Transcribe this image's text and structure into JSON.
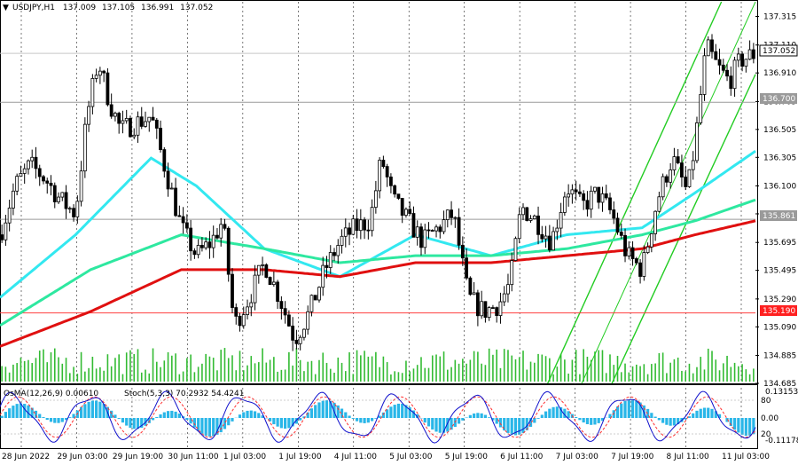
{
  "header": {
    "symbol": "USDJPY,H1",
    "open": "137.009",
    "high": "137.105",
    "low": "136.991",
    "close": "137.052"
  },
  "price_axis": {
    "ticks": [
      "137.315",
      "137.110",
      "136.910",
      "136.705",
      "136.505",
      "136.305",
      "136.100",
      "135.900",
      "135.695",
      "135.495",
      "135.290",
      "135.090",
      "134.885",
      "134.685"
    ]
  },
  "time_axis": {
    "labels": [
      "28 Jun 2022",
      "29 Jun 03:00",
      "29 Jun 19:00",
      "30 Jun 11:00",
      "1 Jul 03:00",
      "1 Jul 19:00",
      "4 Jul 11:00",
      "5 Jul 03:00",
      "5 Jul 19:00",
      "6 Jul 11:00",
      "7 Jul 03:00",
      "7 Jul 19:00",
      "8 Jul 11:00",
      "11 Jul 03:00"
    ]
  },
  "markers": {
    "current_price": "137.052",
    "level_upper": "136.700",
    "level_mid": "135.861",
    "level_lower": "135.190"
  },
  "indicator": {
    "osma_label": "OsMA(12,26,9) 0.00610",
    "stoch_label": "Stoch(5,3,3) 70.2932 54.4241",
    "axis_ticks": [
      "0.13153",
      "80",
      "0.00",
      "20",
      "-0.11178"
    ]
  },
  "colors": {
    "candle": "#000000",
    "ema_fast": "#33e8f0",
    "ema_mid": "#2ee8a0",
    "ema_slow": "#e01010",
    "channel": "#22cc22",
    "level_line": "#ff4040",
    "gray_level": "#9a9a9a",
    "volume": "#33bb33",
    "osma": "#29b6e8",
    "stoch_main": "#1010cc",
    "stoch_signal": "#ff3030"
  },
  "chart_data": {
    "type": "candlestick",
    "symbol": "USDJPY",
    "timeframe": "H1",
    "ylim": [
      134.685,
      137.42
    ],
    "horizontal_levels": [
      136.7,
      135.861,
      135.19
    ],
    "price_anchors": [
      {
        "x": 0,
        "y": 135.75
      },
      {
        "x": 0.02,
        "y": 136.1
      },
      {
        "x": 0.04,
        "y": 136.25
      },
      {
        "x": 0.06,
        "y": 136.15
      },
      {
        "x": 0.08,
        "y": 136.0
      },
      {
        "x": 0.1,
        "y": 135.9
      },
      {
        "x": 0.115,
        "y": 136.6
      },
      {
        "x": 0.13,
        "y": 137.0
      },
      {
        "x": 0.145,
        "y": 136.7
      },
      {
        "x": 0.16,
        "y": 136.5
      },
      {
        "x": 0.18,
        "y": 136.55
      },
      {
        "x": 0.2,
        "y": 136.6
      },
      {
        "x": 0.22,
        "y": 136.2
      },
      {
        "x": 0.24,
        "y": 135.8
      },
      {
        "x": 0.26,
        "y": 135.6
      },
      {
        "x": 0.28,
        "y": 135.7
      },
      {
        "x": 0.295,
        "y": 135.85
      },
      {
        "x": 0.31,
        "y": 135.1
      },
      {
        "x": 0.33,
        "y": 135.3
      },
      {
        "x": 0.35,
        "y": 135.55
      },
      {
        "x": 0.37,
        "y": 135.3
      },
      {
        "x": 0.39,
        "y": 135.0
      },
      {
        "x": 0.41,
        "y": 135.2
      },
      {
        "x": 0.43,
        "y": 135.5
      },
      {
        "x": 0.45,
        "y": 135.7
      },
      {
        "x": 0.47,
        "y": 135.8
      },
      {
        "x": 0.49,
        "y": 135.85
      },
      {
        "x": 0.505,
        "y": 136.3
      },
      {
        "x": 0.52,
        "y": 136.0
      },
      {
        "x": 0.54,
        "y": 135.85
      },
      {
        "x": 0.56,
        "y": 135.7
      },
      {
        "x": 0.58,
        "y": 135.8
      },
      {
        "x": 0.6,
        "y": 135.9
      },
      {
        "x": 0.62,
        "y": 135.3
      },
      {
        "x": 0.64,
        "y": 135.2
      },
      {
        "x": 0.66,
        "y": 135.25
      },
      {
        "x": 0.675,
        "y": 135.4
      },
      {
        "x": 0.69,
        "y": 135.95
      },
      {
        "x": 0.71,
        "y": 135.85
      },
      {
        "x": 0.73,
        "y": 135.7
      },
      {
        "x": 0.75,
        "y": 136.1
      },
      {
        "x": 0.77,
        "y": 135.95
      },
      {
        "x": 0.79,
        "y": 136.05
      },
      {
        "x": 0.81,
        "y": 135.9
      },
      {
        "x": 0.83,
        "y": 135.6
      },
      {
        "x": 0.85,
        "y": 135.5
      },
      {
        "x": 0.87,
        "y": 136.0
      },
      {
        "x": 0.89,
        "y": 136.3
      },
      {
        "x": 0.91,
        "y": 136.05
      },
      {
        "x": 0.92,
        "y": 136.4
      },
      {
        "x": 0.935,
        "y": 137.1
      },
      {
        "x": 0.95,
        "y": 136.95
      },
      {
        "x": 0.965,
        "y": 136.85
      },
      {
        "x": 0.98,
        "y": 137.0
      },
      {
        "x": 1,
        "y": 137.05
      }
    ],
    "ema_fast": [
      {
        "x": 0,
        "y": 135.3
      },
      {
        "x": 0.1,
        "y": 135.75
      },
      {
        "x": 0.2,
        "y": 136.3
      },
      {
        "x": 0.26,
        "y": 136.1
      },
      {
        "x": 0.35,
        "y": 135.65
      },
      {
        "x": 0.45,
        "y": 135.45
      },
      {
        "x": 0.55,
        "y": 135.75
      },
      {
        "x": 0.65,
        "y": 135.6
      },
      {
        "x": 0.75,
        "y": 135.75
      },
      {
        "x": 0.85,
        "y": 135.8
      },
      {
        "x": 0.92,
        "y": 136.05
      },
      {
        "x": 1,
        "y": 136.35
      }
    ],
    "ema_mid": [
      {
        "x": 0,
        "y": 135.1
      },
      {
        "x": 0.12,
        "y": 135.5
      },
      {
        "x": 0.24,
        "y": 135.75
      },
      {
        "x": 0.35,
        "y": 135.65
      },
      {
        "x": 0.45,
        "y": 135.55
      },
      {
        "x": 0.55,
        "y": 135.6
      },
      {
        "x": 0.65,
        "y": 135.6
      },
      {
        "x": 0.75,
        "y": 135.65
      },
      {
        "x": 0.85,
        "y": 135.75
      },
      {
        "x": 0.92,
        "y": 135.85
      },
      {
        "x": 1,
        "y": 136.0
      }
    ],
    "ema_slow": [
      {
        "x": 0,
        "y": 134.95
      },
      {
        "x": 0.12,
        "y": 135.2
      },
      {
        "x": 0.24,
        "y": 135.5
      },
      {
        "x": 0.35,
        "y": 135.5
      },
      {
        "x": 0.45,
        "y": 135.45
      },
      {
        "x": 0.55,
        "y": 135.55
      },
      {
        "x": 0.65,
        "y": 135.55
      },
      {
        "x": 0.75,
        "y": 135.6
      },
      {
        "x": 0.85,
        "y": 135.65
      },
      {
        "x": 0.92,
        "y": 135.75
      },
      {
        "x": 1,
        "y": 135.85
      }
    ],
    "channel_lines": [
      {
        "from": {
          "x": 0.725,
          "y": 134.685
        },
        "to": {
          "x": 0.955,
          "y": 137.42
        }
      },
      {
        "from": {
          "x": 0.77,
          "y": 134.685
        },
        "to": {
          "x": 1.0,
          "y": 137.42
        }
      },
      {
        "from": {
          "x": 0.81,
          "y": 134.685
        },
        "to": {
          "x": 1.0,
          "y": 136.9
        }
      }
    ],
    "xlabel": "",
    "ylabel": "",
    "grid": true
  }
}
